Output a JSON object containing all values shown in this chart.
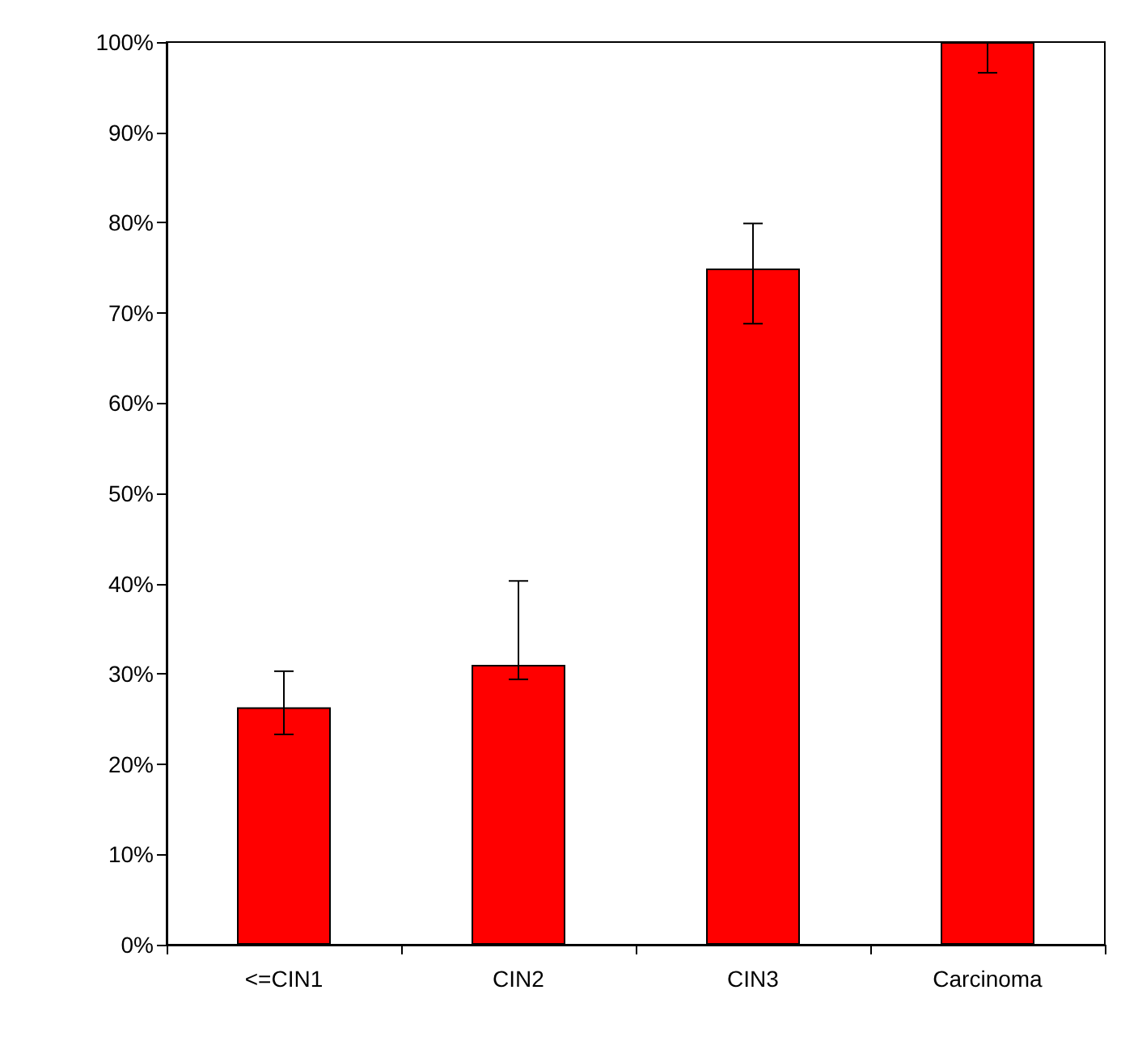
{
  "chart_data": {
    "type": "bar",
    "categories": [
      "<=CIN1",
      "CIN2",
      "CIN3",
      "Carcinoma"
    ],
    "values": [
      26.3,
      31.0,
      74.9,
      100
    ],
    "errors": [
      [
        23.3,
        30.3
      ],
      [
        29.4,
        40.3
      ],
      [
        68.8,
        79.9
      ],
      [
        96.6,
        100
      ]
    ],
    "color": "#ff0000",
    "ylim": [
      0,
      100
    ],
    "yticks": [
      {
        "value": 0,
        "label": "0%"
      },
      {
        "value": 10,
        "label": "10%"
      },
      {
        "value": 20,
        "label": "20%"
      },
      {
        "value": 30,
        "label": "30%"
      },
      {
        "value": 40,
        "label": "40%"
      },
      {
        "value": 50,
        "label": "50%"
      },
      {
        "value": 60,
        "label": "60%"
      },
      {
        "value": 70,
        "label": "70%"
      },
      {
        "value": 80,
        "label": "80%"
      },
      {
        "value": 90,
        "label": "90%"
      },
      {
        "value": 100,
        "label": "100%"
      }
    ],
    "grid": false
  }
}
